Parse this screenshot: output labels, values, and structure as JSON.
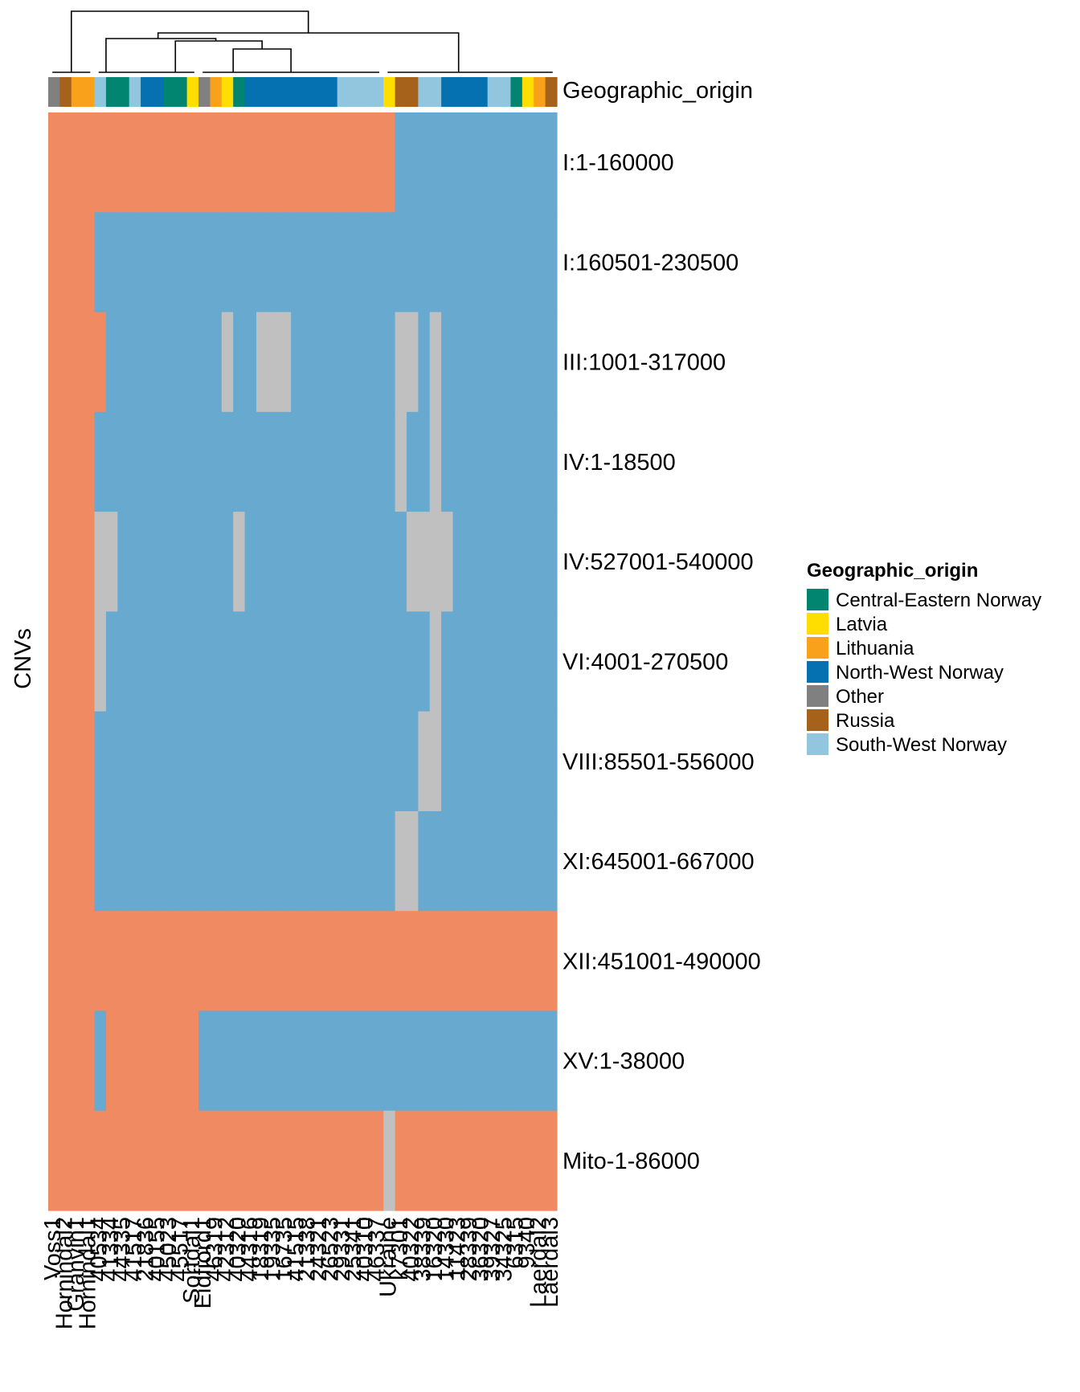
{
  "chart_data": {
    "type": "heatmap",
    "title": "",
    "ylabel": "CNVs",
    "annotation_label": "Geographic_origin",
    "legend": {
      "title": "Geographic_origin",
      "position": "right",
      "entries": [
        {
          "name": "Central-Eastern Norway",
          "color": "#018571"
        },
        {
          "name": "Latvia",
          "color": "#FEDD00"
        },
        {
          "name": "Lithuania",
          "color": "#F9A11B"
        },
        {
          "name": "North-West Norway",
          "color": "#0571B0"
        },
        {
          "name": "Other",
          "color": "#808080"
        },
        {
          "name": "Russia",
          "color": "#A6611A"
        },
        {
          "name": "South-West Norway",
          "color": "#92C5DE"
        }
      ]
    },
    "cell_colors": {
      "1": "#EF8A62",
      "0": "#67A9CF",
      "NA": "#C0C0C0"
    },
    "rows": [
      "I:1-160000",
      "I:160501-230500",
      "III:1001-317000",
      "IV:1-18500",
      "IV:527001-540000",
      "VI:4001-270500",
      "VIII:85501-556000",
      "XI:645001-667000",
      "XII:451001-490000",
      "XV:1-38000",
      "Mito-1-86000"
    ],
    "columns": [
      {
        "label": "Voss1",
        "origin": "Other"
      },
      {
        "label": "Hornindal2",
        "origin": "Russia"
      },
      {
        "label": "Granvin1",
        "origin": "Lithuania"
      },
      {
        "label": "Hornindal1",
        "origin": "Lithuania"
      },
      {
        "label": "40534",
        "origin": "South-West Norway"
      },
      {
        "label": "41334",
        "origin": "Central-Eastern Norway"
      },
      {
        "label": "44335",
        "origin": "Central-Eastern Norway"
      },
      {
        "label": "41517",
        "origin": "South-West Norway"
      },
      {
        "label": "21836",
        "origin": "North-West Norway"
      },
      {
        "label": "40155",
        "origin": "North-West Norway"
      },
      {
        "label": "45023",
        "origin": "Central-Eastern Norway"
      },
      {
        "label": "45517",
        "origin": "Central-Eastern Norway"
      },
      {
        "label": "Sortdal1",
        "origin": "Latvia"
      },
      {
        "label": "Eidfjord1",
        "origin": "Other"
      },
      {
        "label": "46319",
        "origin": "Lithuania"
      },
      {
        "label": "42312",
        "origin": "Latvia"
      },
      {
        "label": "40320",
        "origin": "Central-Eastern Norway"
      },
      {
        "label": "44316",
        "origin": "North-West Norway"
      },
      {
        "label": "18319",
        "origin": "North-West Norway"
      },
      {
        "label": "19335",
        "origin": "North-West Norway"
      },
      {
        "label": "16735",
        "origin": "North-West Norway"
      },
      {
        "label": "41515",
        "origin": "North-West Norway"
      },
      {
        "label": "21338",
        "origin": "North-West Norway"
      },
      {
        "label": "24321",
        "origin": "North-West Norway"
      },
      {
        "label": "26523",
        "origin": "North-West Norway"
      },
      {
        "label": "29331",
        "origin": "South-West Norway"
      },
      {
        "label": "25341",
        "origin": "South-West Norway"
      },
      {
        "label": "40310",
        "origin": "South-West Norway"
      },
      {
        "label": "46337",
        "origin": "South-West Norway"
      },
      {
        "label": "Ukraine",
        "origin": "Latvia"
      },
      {
        "label": "k7301",
        "origin": "Russia"
      },
      {
        "label": "40322",
        "origin": "Russia"
      },
      {
        "label": "38339",
        "origin": "South-West Norway"
      },
      {
        "label": "16320",
        "origin": "South-West Norway"
      },
      {
        "label": "14330",
        "origin": "North-West Norway"
      },
      {
        "label": "11423",
        "origin": "North-West Norway"
      },
      {
        "label": "28339",
        "origin": "North-West Norway"
      },
      {
        "label": "36320",
        "origin": "North-West Norway"
      },
      {
        "label": "39327",
        "origin": "South-West Norway"
      },
      {
        "label": "34325",
        "origin": "South-West Norway"
      },
      {
        "label": "6315",
        "origin": "Central-Eastern Norway"
      },
      {
        "label": "9340",
        "origin": "Latvia"
      },
      {
        "label": "Laerdal2",
        "origin": "Lithuania"
      },
      {
        "label": "Laerdal3",
        "origin": "Russia"
      }
    ],
    "matrix": [
      [
        1,
        1,
        1,
        1,
        1,
        1,
        1,
        1,
        1,
        1,
        1,
        1,
        1,
        1,
        1,
        1,
        1,
        1,
        1,
        1,
        1,
        1,
        1,
        1,
        1,
        1,
        1,
        1,
        1,
        1,
        0,
        0,
        0,
        0,
        0,
        0,
        0,
        0,
        0,
        0,
        0,
        0,
        0,
        0
      ],
      [
        1,
        1,
        1,
        1,
        0,
        0,
        0,
        0,
        0,
        0,
        0,
        0,
        0,
        0,
        0,
        0,
        0,
        0,
        0,
        0,
        0,
        0,
        0,
        0,
        0,
        0,
        0,
        0,
        0,
        0,
        0,
        0,
        0,
        0,
        0,
        0,
        0,
        0,
        0,
        0,
        0,
        0,
        0,
        0
      ],
      [
        1,
        1,
        1,
        1,
        1,
        0,
        0,
        0,
        0,
        0,
        0,
        0,
        0,
        0,
        0,
        "NA",
        0,
        0,
        "NA",
        "NA",
        "NA",
        0,
        0,
        0,
        0,
        0,
        0,
        0,
        0,
        0,
        "NA",
        "NA",
        0,
        "NA",
        0,
        0,
        0,
        0,
        0,
        0,
        0,
        0,
        0,
        0
      ],
      [
        1,
        1,
        1,
        1,
        0,
        0,
        0,
        0,
        0,
        0,
        0,
        0,
        0,
        0,
        0,
        0,
        0,
        0,
        0,
        0,
        0,
        0,
        0,
        0,
        0,
        0,
        0,
        0,
        0,
        0,
        "NA",
        0,
        0,
        "NA",
        0,
        0,
        0,
        0,
        0,
        0,
        0,
        0,
        0,
        0
      ],
      [
        1,
        1,
        1,
        1,
        "NA",
        "NA",
        0,
        0,
        0,
        0,
        0,
        0,
        0,
        0,
        0,
        0,
        "NA",
        0,
        0,
        0,
        0,
        0,
        0,
        0,
        0,
        0,
        0,
        0,
        0,
        0,
        0,
        "NA",
        "NA",
        "NA",
        "NA",
        0,
        0,
        0,
        0,
        0,
        0,
        0,
        0,
        0
      ],
      [
        1,
        1,
        1,
        1,
        "NA",
        0,
        0,
        0,
        0,
        0,
        0,
        0,
        0,
        0,
        0,
        0,
        0,
        0,
        0,
        0,
        0,
        0,
        0,
        0,
        0,
        0,
        0,
        0,
        0,
        0,
        0,
        0,
        0,
        "NA",
        0,
        0,
        0,
        0,
        0,
        0,
        0,
        0,
        0,
        0
      ],
      [
        1,
        1,
        1,
        1,
        0,
        0,
        0,
        0,
        0,
        0,
        0,
        0,
        0,
        0,
        0,
        0,
        0,
        0,
        0,
        0,
        0,
        0,
        0,
        0,
        0,
        0,
        0,
        0,
        0,
        0,
        0,
        0,
        "NA",
        "NA",
        0,
        0,
        0,
        0,
        0,
        0,
        0,
        0,
        0,
        0
      ],
      [
        1,
        1,
        1,
        1,
        0,
        0,
        0,
        0,
        0,
        0,
        0,
        0,
        0,
        0,
        0,
        0,
        0,
        0,
        0,
        0,
        0,
        0,
        0,
        0,
        0,
        0,
        0,
        0,
        0,
        0,
        "NA",
        "NA",
        0,
        0,
        0,
        0,
        0,
        0,
        0,
        0,
        0,
        0,
        0,
        0
      ],
      [
        1,
        1,
        1,
        1,
        1,
        1,
        1,
        1,
        1,
        1,
        1,
        1,
        1,
        1,
        1,
        1,
        1,
        1,
        1,
        1,
        1,
        1,
        1,
        1,
        1,
        1,
        1,
        1,
        1,
        1,
        1,
        1,
        1,
        1,
        1,
        1,
        1,
        1,
        1,
        1,
        1,
        1,
        1,
        1
      ],
      [
        1,
        1,
        1,
        1,
        0,
        1,
        1,
        1,
        1,
        1,
        1,
        1,
        1,
        0,
        0,
        0,
        0,
        0,
        0,
        0,
        0,
        0,
        0,
        0,
        0,
        0,
        0,
        0,
        0,
        0,
        0,
        0,
        0,
        0,
        0,
        0,
        0,
        0,
        0,
        0,
        0,
        0,
        0,
        0
      ],
      [
        1,
        1,
        1,
        1,
        1,
        1,
        1,
        1,
        1,
        1,
        1,
        1,
        1,
        1,
        1,
        1,
        1,
        1,
        1,
        1,
        1,
        1,
        1,
        1,
        1,
        1,
        1,
        1,
        1,
        "NA",
        1,
        1,
        1,
        1,
        1,
        1,
        1,
        1,
        1,
        1,
        1,
        1,
        1,
        1
      ]
    ]
  }
}
